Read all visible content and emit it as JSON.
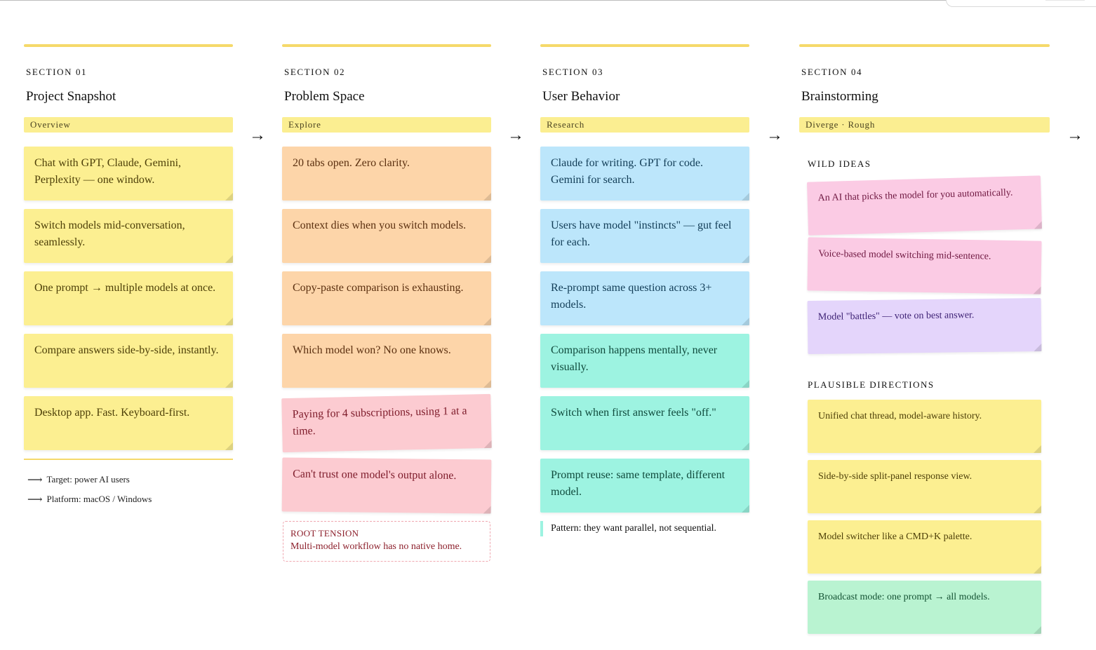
{
  "sections": [
    {
      "number": "SECTION 01",
      "title": "Project Snapshot",
      "tag": "Overview",
      "notes": [
        "Chat with GPT, Claude, Gemini, Perplexity — one window.",
        "Switch models mid-conversation, seamlessly.",
        "One prompt → multiple models at once.",
        "Compare answers side-by-side, instantly.",
        "Desktop app. Fast. Keyboard-first."
      ],
      "meta": [
        "Target: power AI users",
        "Platform: macOS / Windows"
      ]
    },
    {
      "number": "SECTION 02",
      "title": "Problem Space",
      "tag": "Explore",
      "notes": [
        "20 tabs open. Zero clarity.",
        "Context dies when you switch models.",
        "Copy-paste comparison is exhausting.",
        "Which model won? No one knows.",
        "Paying for 4 subscriptions, using 1 at a time.",
        "Can't trust one model's output alone."
      ],
      "tension_label": "ROOT TENSION",
      "tension_text": "Multi-model workflow has no native home."
    },
    {
      "number": "SECTION 03",
      "title": "User Behavior",
      "tag": "Research",
      "notes": [
        "Claude for writing. GPT for code. Gemini for search.",
        "Users have model \"instincts\" — gut feel for each.",
        "Re-prompt same question across 3+ models.",
        "Comparison happens mentally, never visually.",
        "Switch when first answer feels \"off.\"",
        "Prompt reuse: same template, different model."
      ],
      "pattern": "Pattern: they want parallel, not sequential."
    },
    {
      "number": "SECTION 04",
      "title": "Brainstorming",
      "tag": "Diverge · Rough",
      "wild_heading": "WILD IDEAS",
      "wild_ideas": [
        "An AI that picks the model for you automatically.",
        "Voice-based model switching mid-sentence.",
        "Model \"battles\" — vote on best answer."
      ],
      "plausible_heading": "PLAUSIBLE DIRECTIONS",
      "plausible": [
        "Unified chat thread, model-aware history.",
        "Side-by-side split-panel response view.",
        "Model switcher like a CMD+K palette.",
        "Broadcast mode: one prompt → all models."
      ]
    }
  ],
  "flow_arrow": "→",
  "colors": {
    "accent_bar": "#f5d96a",
    "tag_bg": "#fbee91",
    "yellow_note": "#fcef91",
    "orange_note": "#fdd5a9",
    "pink_note": "#fccbd1",
    "blue_note": "#bce6fb",
    "teal_note": "#9df3e1",
    "magenta_note": "#fbcbe4",
    "lavender_note": "#e4d5fb",
    "green_note": "#b9f3d1",
    "tension_border": "#f0a7b0"
  }
}
